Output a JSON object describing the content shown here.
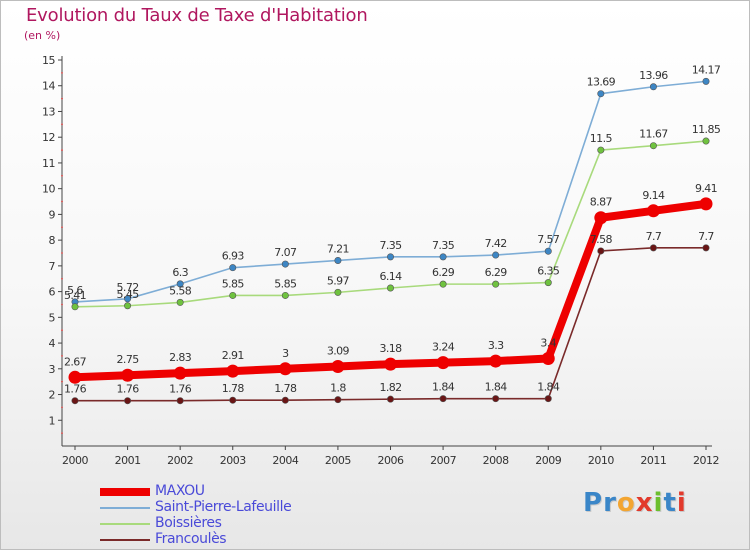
{
  "title": "Evolution du Taux de Taxe d'Habitation",
  "subtitle": "(en %)",
  "logo": {
    "letters": [
      {
        "ch": "P",
        "color": "#3a86c8"
      },
      {
        "ch": "r",
        "color": "#3a86c8"
      },
      {
        "ch": "o",
        "color": "#f3a531"
      },
      {
        "ch": "x",
        "color": "#e23a2c"
      },
      {
        "ch": "i",
        "color": "#6cbf2e"
      },
      {
        "ch": "t",
        "color": "#3a86c8"
      },
      {
        "ch": "i",
        "color": "#e23a2c"
      }
    ]
  },
  "chart_data": {
    "type": "line",
    "title": "Evolution du Taux de Taxe d'Habitation",
    "ylabel": "(en %)",
    "x": [
      2000,
      2001,
      2002,
      2003,
      2004,
      2005,
      2006,
      2007,
      2008,
      2009,
      2010,
      2011,
      2012
    ],
    "x_tick_labels": [
      "2000",
      "2001",
      "2002",
      "2003",
      "2004",
      "2005",
      "2006",
      "2007",
      "2008",
      "2009",
      "2010",
      "2011",
      "2012"
    ],
    "ylim": [
      0,
      15
    ],
    "y_tick_labels": [
      "1",
      "2",
      "3",
      "4",
      "5",
      "6",
      "7",
      "8",
      "9",
      "10",
      "11",
      "12",
      "13",
      "14",
      "15"
    ],
    "grid": false,
    "legend_placement": "bottom-left",
    "series": [
      {
        "name": "MAXOU",
        "color": "#ee0000",
        "marker_color": "#ee0000",
        "emphasis": true,
        "values": [
          2.67,
          2.75,
          2.83,
          2.91,
          3,
          3.09,
          3.18,
          3.24,
          3.3,
          3.4,
          8.87,
          9.14,
          9.41
        ],
        "labels": [
          "2.67",
          "2.75",
          "2.83",
          "2.91",
          "3",
          "3.09",
          "3.18",
          "3.24",
          "3.3",
          "3.4",
          "8.87",
          "9.14",
          "9.41"
        ]
      },
      {
        "name": "Saint-Pierre-Lafeuille",
        "color": "#7eadd6",
        "marker_color": "#3d86c4",
        "emphasis": false,
        "values": [
          5.6,
          5.72,
          6.3,
          6.93,
          7.07,
          7.21,
          7.35,
          7.35,
          7.42,
          7.57,
          13.69,
          13.96,
          14.17
        ],
        "labels": [
          "5.6",
          "5.72",
          "6.3",
          "6.93",
          "7.07",
          "7.21",
          "7.35",
          "7.35",
          "7.42",
          "7.57",
          "13.69",
          "13.96",
          "14.17"
        ]
      },
      {
        "name": "Boissières",
        "color": "#a8da7c",
        "marker_color": "#6fc23f",
        "emphasis": false,
        "values": [
          5.41,
          5.45,
          5.58,
          5.85,
          5.85,
          5.97,
          6.14,
          6.29,
          6.29,
          6.35,
          11.5,
          11.67,
          11.85
        ],
        "labels": [
          "5.41",
          "5.45",
          "5.58",
          "5.85",
          "5.85",
          "5.97",
          "6.14",
          "6.29",
          "6.29",
          "6.35",
          "11.5",
          "11.67",
          "11.85"
        ]
      },
      {
        "name": "Francoulès",
        "color": "#7a2a2a",
        "marker_color": "#6a1515",
        "emphasis": false,
        "values": [
          1.76,
          1.76,
          1.76,
          1.78,
          1.78,
          1.8,
          1.82,
          1.84,
          1.84,
          1.84,
          7.58,
          7.7,
          7.7
        ],
        "labels": [
          "1.76",
          "1.76",
          "1.76",
          "1.78",
          "1.78",
          "1.8",
          "1.82",
          "1.84",
          "1.84",
          "1.84",
          "7.58",
          "7.7",
          "7.7"
        ]
      }
    ]
  }
}
